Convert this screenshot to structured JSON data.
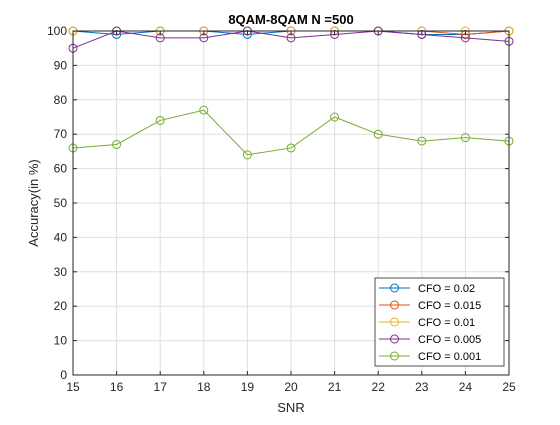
{
  "chart_data": {
    "type": "line",
    "title": "8QAM-8QAM N =500",
    "xlabel": "SNR",
    "ylabel": "Accuracy(in %)",
    "xlim": [
      15,
      25
    ],
    "ylim": [
      0,
      100
    ],
    "xticks": [
      "15",
      "16",
      "17",
      "18",
      "19",
      "20",
      "21",
      "22",
      "23",
      "24",
      "25"
    ],
    "yticks": [
      "0",
      "10",
      "20",
      "30",
      "40",
      "50",
      "60",
      "70",
      "80",
      "90",
      "100"
    ],
    "grid": true,
    "legend_position": "bottom-right",
    "x": [
      15,
      16,
      17,
      18,
      19,
      20,
      21,
      22,
      23,
      24,
      25
    ],
    "series": [
      {
        "name": "CFO = 0.02",
        "color": "#0072BD",
        "values": [
          100,
          99,
          100,
          100,
          99,
          100,
          100,
          100,
          99,
          99,
          100
        ]
      },
      {
        "name": "CFO = 0.015",
        "color": "#D95319",
        "values": [
          100,
          100,
          100,
          100,
          100,
          100,
          100,
          100,
          100,
          99,
          100
        ]
      },
      {
        "name": "CFO = 0.01",
        "color": "#EDB120",
        "values": [
          100,
          100,
          100,
          100,
          100,
          100,
          100,
          100,
          100,
          100,
          100
        ]
      },
      {
        "name": "CFO = 0.005",
        "color": "#7E2F8E",
        "values": [
          95,
          100,
          98,
          98,
          100,
          98,
          99,
          100,
          99,
          98,
          97
        ]
      },
      {
        "name": "CFO = 0.001",
        "color": "#77AC30",
        "values": [
          66,
          67,
          74,
          77,
          64,
          66,
          75,
          70,
          68,
          69,
          68
        ]
      }
    ]
  }
}
